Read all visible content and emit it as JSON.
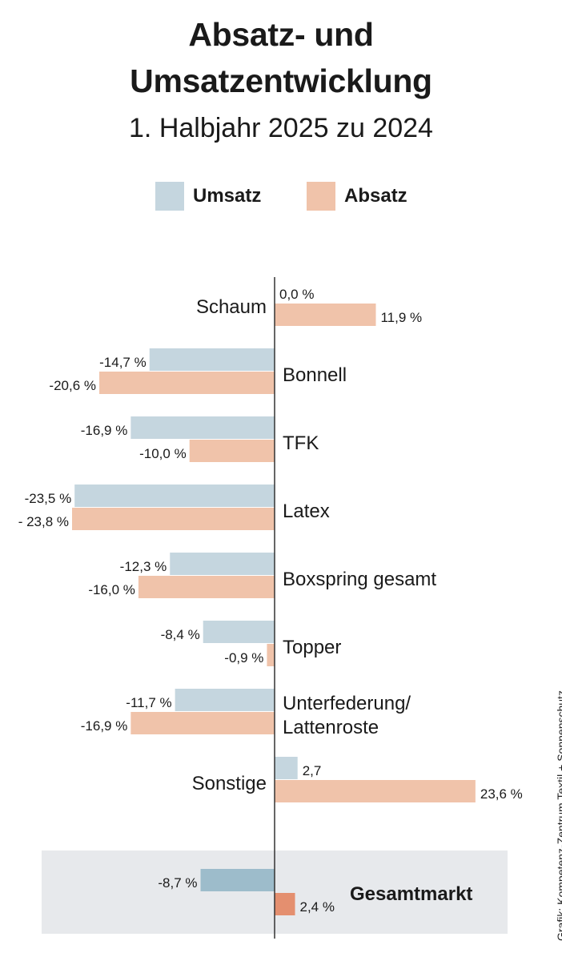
{
  "chart_data": {
    "type": "bar",
    "orientation": "horizontal",
    "title_line1": "Absatz- und",
    "title_line2": "Umsatzentwicklung",
    "subtitle": "1. Halbjahr 2025 zu 2024",
    "unit": "%",
    "series": [
      {
        "name": "Umsatz",
        "color": "#c5d6df",
        "highlight_color": "#9dbccb"
      },
      {
        "name": "Absatz",
        "color": "#f0c3aa",
        "highlight_color": "#e48f6f"
      }
    ],
    "categories": [
      {
        "label_lines": [
          "Schaum"
        ],
        "label_side": "left",
        "umsatz": 0.0,
        "umsatz_label": "0,0 %",
        "absatz": 11.9,
        "absatz_label": "11,9 %"
      },
      {
        "label_lines": [
          "Bonnell"
        ],
        "label_side": "right",
        "umsatz": -14.7,
        "umsatz_label": "-14,7 %",
        "absatz": -20.6,
        "absatz_label": "-20,6 %"
      },
      {
        "label_lines": [
          "TFK"
        ],
        "label_side": "right",
        "umsatz": -16.9,
        "umsatz_label": "-16,9 %",
        "absatz": -10.0,
        "absatz_label": "-10,0 %"
      },
      {
        "label_lines": [
          "Latex"
        ],
        "label_side": "right",
        "umsatz": -23.5,
        "umsatz_label": "-23,5 %",
        "absatz": -23.8,
        "absatz_label": "- 23,8 %"
      },
      {
        "label_lines": [
          "Boxspring gesamt"
        ],
        "label_side": "right",
        "umsatz": -12.3,
        "umsatz_label": "-12,3 %",
        "absatz": -16.0,
        "absatz_label": "-16,0 %"
      },
      {
        "label_lines": [
          "Topper"
        ],
        "label_side": "right",
        "umsatz": -8.4,
        "umsatz_label": "-8,4 %",
        "absatz": -0.9,
        "absatz_label": "-0,9 %"
      },
      {
        "label_lines": [
          "Unterfederung/",
          "Lattenroste"
        ],
        "label_side": "right",
        "umsatz": -11.7,
        "umsatz_label": "-11,7 %",
        "absatz": -16.9,
        "absatz_label": "-16,9 %"
      },
      {
        "label_lines": [
          "Sonstige"
        ],
        "label_side": "left",
        "umsatz": 2.7,
        "umsatz_label": "2,7",
        "absatz": 23.6,
        "absatz_label": "23,6 %"
      }
    ],
    "total": {
      "label": "Gesamtmarkt",
      "umsatz": -8.7,
      "umsatz_label": "-8,7 %",
      "absatz": 2.4,
      "absatz_label": "2,4 %"
    },
    "total_background": "#e7e9ec",
    "credit": "Grafik: Kompetenz-Zentrum Textil + Sonnenschutz"
  }
}
